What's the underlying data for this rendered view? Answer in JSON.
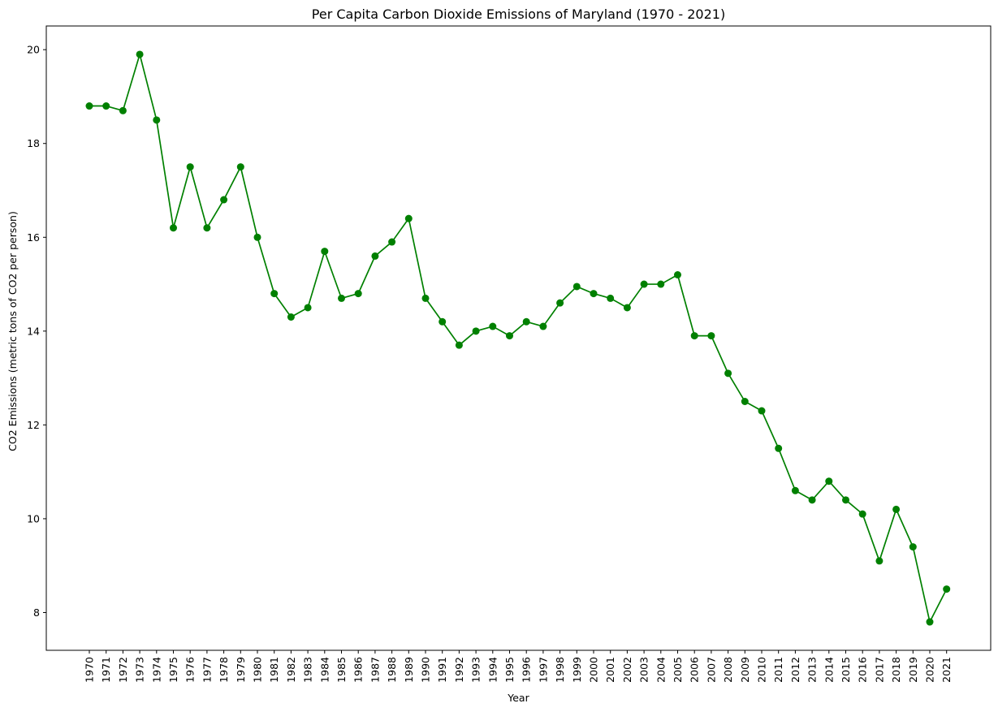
{
  "chart_data": {
    "type": "line",
    "title": "Per Capita Carbon Dioxide Emissions of Maryland (1970 - 2021)",
    "xlabel": "Year",
    "ylabel": "CO2 Emissions (metric tons of CO2 per person)",
    "x": [
      "1970",
      "1971",
      "1972",
      "1973",
      "1974",
      "1975",
      "1976",
      "1977",
      "1978",
      "1979",
      "1980",
      "1981",
      "1982",
      "1983",
      "1984",
      "1985",
      "1986",
      "1987",
      "1988",
      "1989",
      "1990",
      "1991",
      "1992",
      "1993",
      "1994",
      "1995",
      "1996",
      "1997",
      "1998",
      "1999",
      "2000",
      "2001",
      "2002",
      "2003",
      "2004",
      "2005",
      "2006",
      "2007",
      "2008",
      "2009",
      "2010",
      "2011",
      "2012",
      "2013",
      "2014",
      "2015",
      "2016",
      "2017",
      "2018",
      "2019",
      "2020",
      "2021"
    ],
    "series": [
      {
        "values": [
          18.8,
          18.8,
          18.7,
          19.9,
          18.5,
          16.2,
          17.5,
          16.2,
          16.8,
          17.5,
          16.0,
          14.8,
          14.3,
          14.5,
          15.7,
          14.7,
          14.8,
          15.6,
          15.9,
          16.4,
          14.7,
          14.2,
          13.7,
          14.0,
          14.1,
          13.9,
          14.2,
          14.1,
          14.6,
          14.95,
          14.8,
          14.7,
          14.5,
          15.0,
          15.0,
          15.2,
          13.9,
          13.9,
          13.1,
          12.5,
          12.3,
          11.5,
          10.6,
          10.4,
          10.8,
          10.4,
          10.1,
          9.1,
          10.2,
          9.4,
          7.8,
          8.5
        ],
        "color": "#008000"
      }
    ],
    "y_ticks": [
      8,
      10,
      12,
      14,
      16,
      18,
      20
    ],
    "ylim": [
      7.195,
      20.505
    ],
    "grid": false,
    "marker": "circle"
  }
}
